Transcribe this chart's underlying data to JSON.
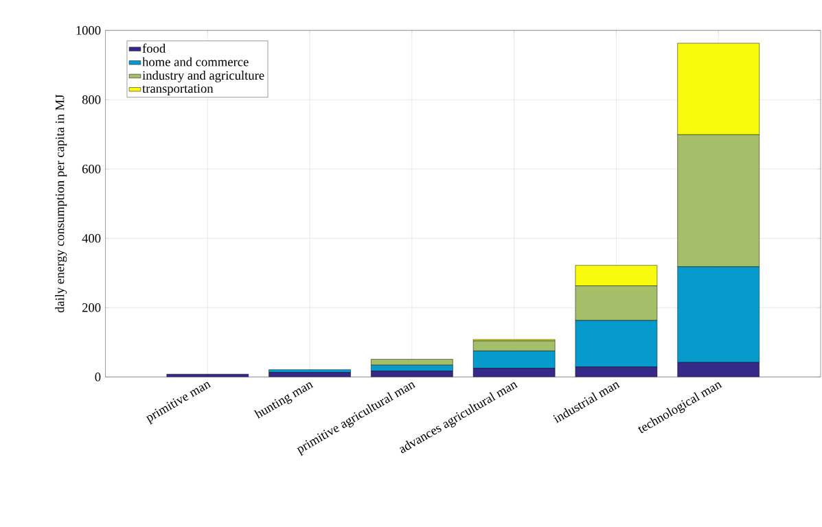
{
  "chart_data": {
    "type": "bar",
    "stacked": true,
    "ylabel": "daily energy consumption per capita in MJ",
    "categories": [
      "primitive man",
      "hunting man",
      "primitive agricultural man",
      "advances agricultural man",
      "industrial man",
      "technological man"
    ],
    "series": [
      {
        "name": "food",
        "color": "#352a87",
        "values": [
          8,
          13,
          17,
          25,
          29,
          42
        ]
      },
      {
        "name": "home and commerce",
        "color": "#069acd",
        "values": [
          0,
          8,
          17,
          50,
          134,
          276
        ]
      },
      {
        "name": "industry and agriculture",
        "color": "#a5be6a",
        "values": [
          0,
          0,
          17,
          29,
          100,
          381
        ]
      },
      {
        "name": "transportation",
        "color": "#f9fb0e",
        "values": [
          0,
          0,
          0,
          4,
          59,
          264
        ]
      }
    ],
    "ylim": [
      0,
      1000
    ],
    "yticks": [
      0,
      200,
      400,
      600,
      800,
      1000
    ],
    "grid": true,
    "legend": "top left"
  }
}
